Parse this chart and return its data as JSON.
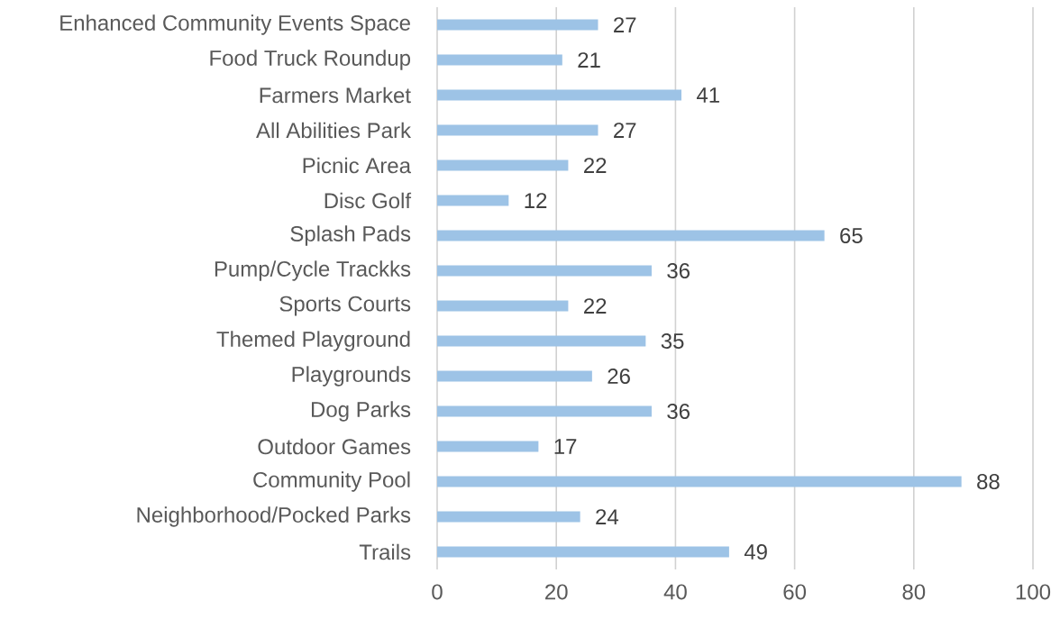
{
  "chart_data": {
    "type": "bar",
    "orientation": "horizontal",
    "categories": [
      "Enhanced Community Events Space",
      "Food Truck Roundup",
      "Farmers Market",
      "All Abilities Park",
      "Picnic Area",
      "Disc Golf",
      "Splash Pads",
      "Pump/Cycle Trackks",
      "Sports Courts",
      "Themed Playground",
      "Playgrounds",
      "Dog Parks",
      "Outdoor Games",
      "Community Pool",
      "Neighborhood/Pocked Parks",
      "Trails"
    ],
    "values": [
      27,
      21,
      41,
      27,
      22,
      12,
      65,
      36,
      22,
      35,
      26,
      36,
      17,
      88,
      24,
      49
    ],
    "color": "#9dc3e6",
    "xlim": [
      0,
      100
    ],
    "xticks": [
      0,
      20,
      40,
      60,
      80,
      100
    ],
    "grid": "x",
    "data_labels": true
  }
}
